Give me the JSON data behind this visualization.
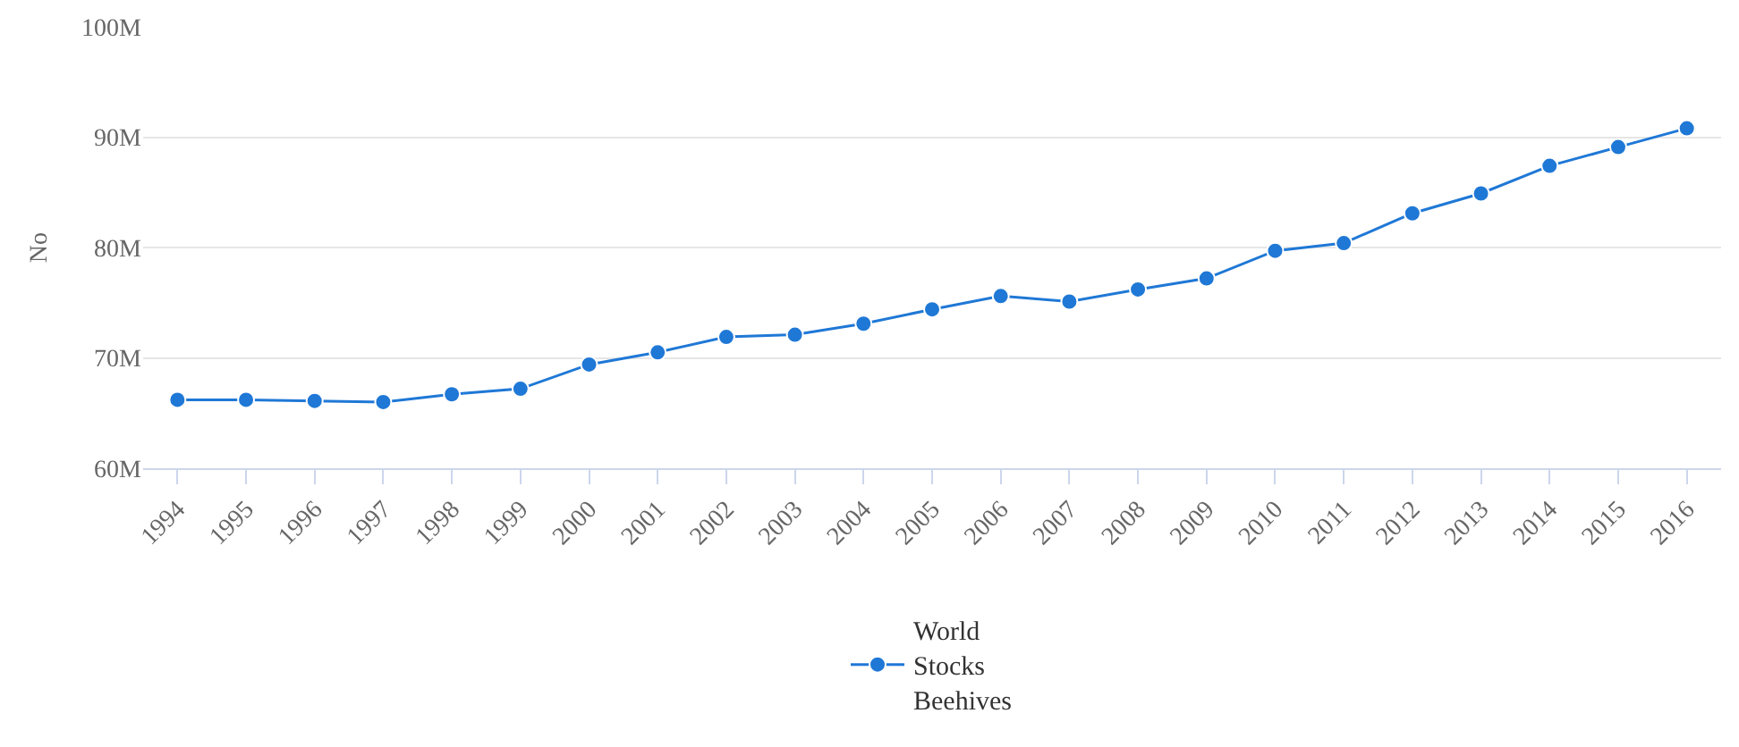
{
  "chart_data": {
    "type": "line",
    "ylabel": "No",
    "categories": [
      "1994",
      "1995",
      "1996",
      "1997",
      "1998",
      "1999",
      "2000",
      "2001",
      "2002",
      "2003",
      "2004",
      "2005",
      "2006",
      "2007",
      "2008",
      "2009",
      "2010",
      "2011",
      "2012",
      "2013",
      "2014",
      "2015",
      "2016"
    ],
    "series": [
      {
        "name": "World Stocks Beehives",
        "color": "#1f78d6",
        "values": [
          66200000,
          66200000,
          66100000,
          66000000,
          66700000,
          67200000,
          69400000,
          70500000,
          71900000,
          72100000,
          73100000,
          74400000,
          75600000,
          75100000,
          76200000,
          77200000,
          79700000,
          80400000,
          83100000,
          84900000,
          87400000,
          89100000,
          90800000
        ]
      }
    ],
    "ylim": [
      60000000,
      100000000
    ],
    "yticks": [
      {
        "value": 60000000,
        "label": "60M"
      },
      {
        "value": 70000000,
        "label": "70M"
      },
      {
        "value": 80000000,
        "label": "80M"
      },
      {
        "value": 90000000,
        "label": "90M"
      },
      {
        "value": 100000000,
        "label": "100M"
      }
    ],
    "grid": "y",
    "legend": "bottom",
    "marker": "circle",
    "line_style": "solid"
  }
}
